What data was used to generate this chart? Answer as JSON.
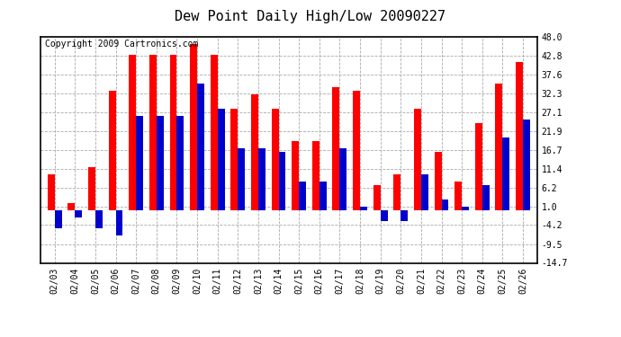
{
  "title": "Dew Point Daily High/Low 20090227",
  "copyright": "Copyright 2009 Cartronics.com",
  "dates": [
    "02/03",
    "02/04",
    "02/05",
    "02/06",
    "02/07",
    "02/08",
    "02/09",
    "02/10",
    "02/11",
    "02/12",
    "02/13",
    "02/14",
    "02/15",
    "02/16",
    "02/17",
    "02/18",
    "02/19",
    "02/20",
    "02/21",
    "02/22",
    "02/23",
    "02/24",
    "02/25",
    "02/26"
  ],
  "highs": [
    10.0,
    2.0,
    12.0,
    33.0,
    43.0,
    43.0,
    43.0,
    46.0,
    43.0,
    28.0,
    32.0,
    28.0,
    19.0,
    19.0,
    34.0,
    33.0,
    7.0,
    10.0,
    28.0,
    16.0,
    8.0,
    24.0,
    35.0,
    41.0
  ],
  "lows": [
    -5.0,
    -2.0,
    -5.0,
    -7.0,
    26.0,
    26.0,
    26.0,
    35.0,
    28.0,
    17.0,
    17.0,
    16.0,
    8.0,
    8.0,
    17.0,
    1.0,
    -3.0,
    -3.0,
    10.0,
    3.0,
    1.0,
    7.0,
    20.0,
    25.0
  ],
  "ylim": [
    -14.7,
    48.0
  ],
  "yticks": [
    -14.7,
    -9.5,
    -4.2,
    1.0,
    6.2,
    11.4,
    16.7,
    21.9,
    27.1,
    32.3,
    37.6,
    42.8,
    48.0
  ],
  "bar_width": 0.35,
  "high_color": "#ff0000",
  "low_color": "#0000cc",
  "bg_color": "#ffffff",
  "grid_color": "#aaaaaa",
  "title_fontsize": 11,
  "copyright_fontsize": 7
}
